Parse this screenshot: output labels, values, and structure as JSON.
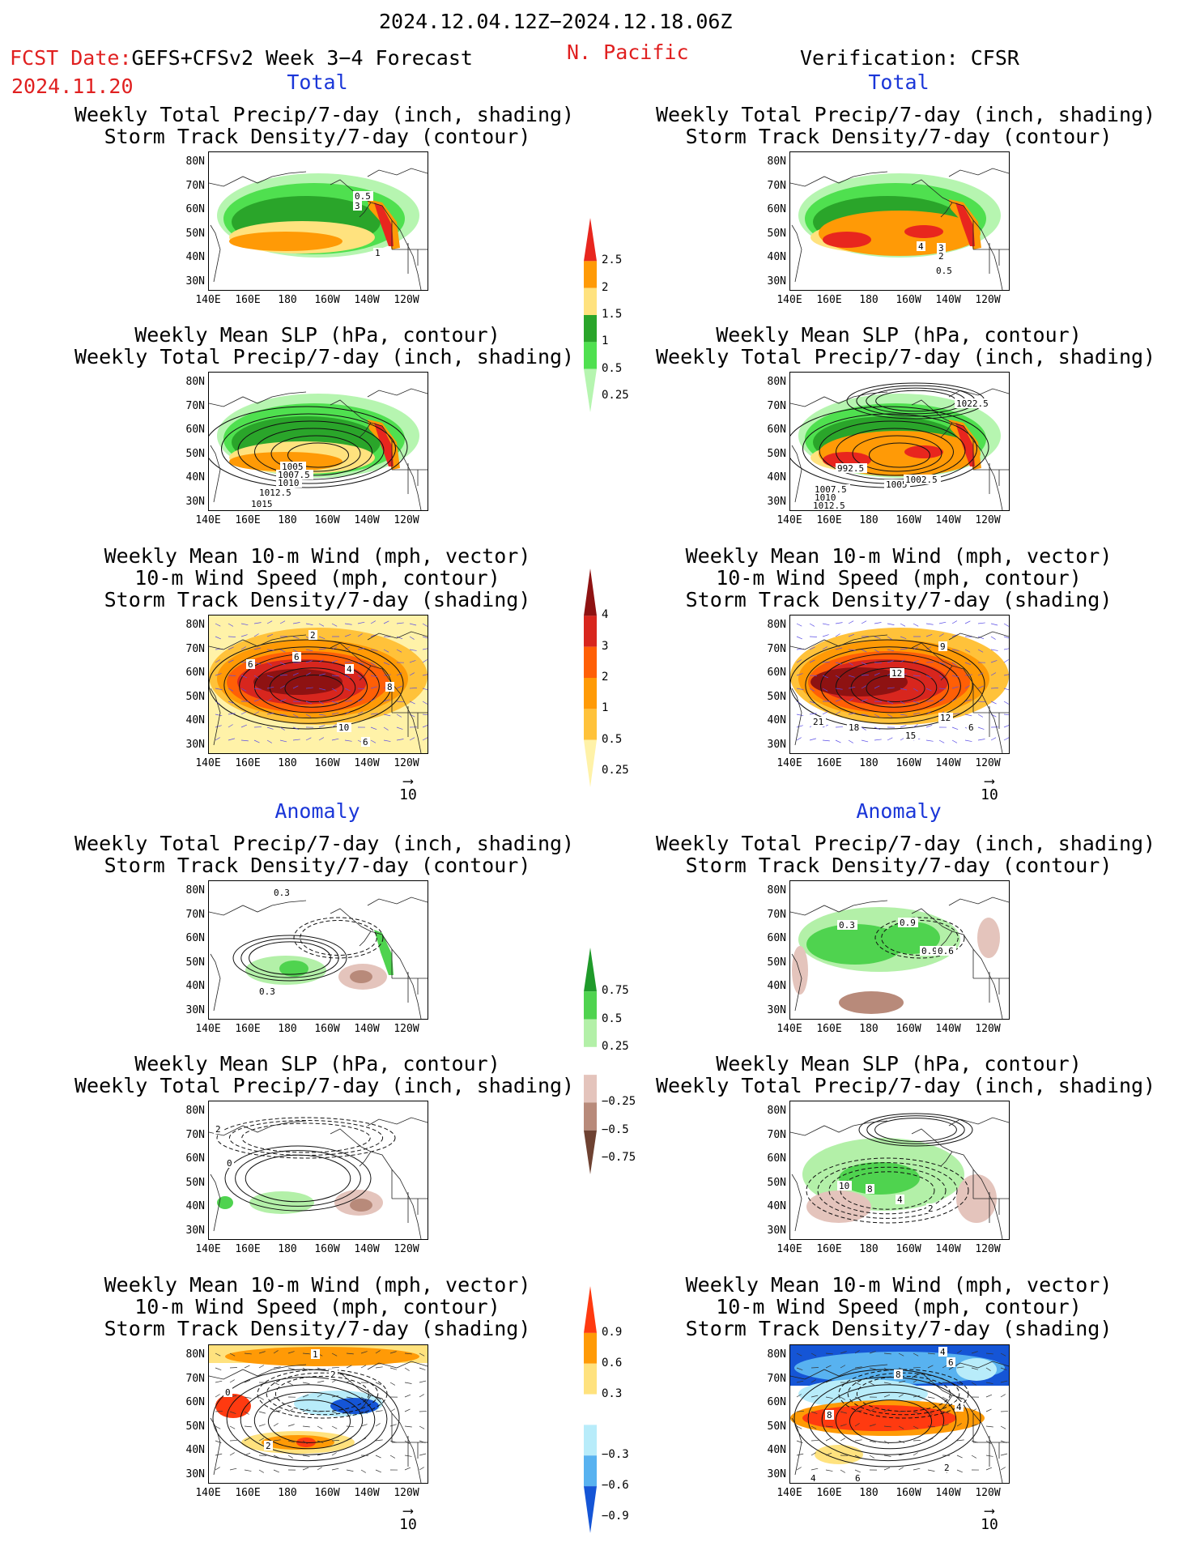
{
  "header": {
    "period": "2024.12.04.12Z−2024.12.18.06Z",
    "fcst_label": "FCST Date:",
    "forecast_name": "GEFS+CFSv2 Week 3−4 Forecast",
    "fcst_date": "2024.11.20",
    "region": "N. Pacific",
    "verification": "Verification: CFSR"
  },
  "sections": {
    "total": "Total",
    "anomaly": "Anomaly"
  },
  "panel_titles": {
    "precip_track": [
      "Weekly Total Precip/7-day (inch, shading)",
      "Storm Track Density/7-day (contour)"
    ],
    "slp_precip": [
      "Weekly Mean SLP (hPa, contour)",
      "Weekly Total Precip/7-day (inch, shading)"
    ],
    "wind_track": [
      "Weekly Mean 10-m Wind (mph, vector)",
      "10-m Wind Speed (mph, contour)",
      "Storm Track Density/7-day (shading)"
    ]
  },
  "axes": {
    "lat_ticks": [
      "80N",
      "70N",
      "60N",
      "50N",
      "40N",
      "30N"
    ],
    "lon_ticks": [
      "140E",
      "160E",
      "180",
      "160W",
      "140W",
      "120W"
    ]
  },
  "vector_ref": "10",
  "colorbars": {
    "precip_total": {
      "labels": [
        "2.5",
        "2",
        "1.5",
        "1",
        "0.5",
        "0.25"
      ],
      "colors": [
        "#e8261e",
        "#ff9a06",
        "#ffe27e",
        "#2aa52a",
        "#4fe04f",
        "#b6f5b0"
      ]
    },
    "track_total": {
      "labels": [
        "4",
        "3",
        "2",
        "1",
        "0.5",
        "0.25"
      ],
      "colors": [
        "#8e1212",
        "#d8261e",
        "#ff5f06",
        "#ff9a06",
        "#ffc23a",
        "#fff2a8"
      ]
    },
    "precip_anom": {
      "labels": [
        "0.75",
        "0.5",
        "0.25",
        "−0.25",
        "−0.5",
        "−0.75"
      ],
      "colors": [
        "#1f9a2a",
        "#4fd34f",
        "#b3f0a8",
        "#ffffff",
        "#e4c4bc",
        "#b88a7a",
        "#6e4232"
      ]
    },
    "track_anom": {
      "labels": [
        "0.9",
        "0.6",
        "0.3",
        "−0.3",
        "−0.6",
        "−0.9"
      ],
      "colors": [
        "#ff3a10",
        "#ff9a06",
        "#ffe27e",
        "#ffffff",
        "#b8ecfa",
        "#58b2f0",
        "#1555d6"
      ]
    }
  },
  "contour_labels": {
    "fcst_total_precip": [
      "0.5",
      "3",
      "1"
    ],
    "cfsr_total_precip": [
      "4",
      "3",
      "2",
      "0.5"
    ],
    "fcst_total_slp": [
      "1005",
      "1007.5",
      "1010",
      "1012.5",
      "1015"
    ],
    "cfsr_total_slp": [
      "1022.5",
      "992.5",
      "1005",
      "1002.5",
      "1007.5",
      "1010",
      "1012.5"
    ],
    "fcst_total_wind": [
      "2",
      "6",
      "6",
      "4",
      "8",
      "10",
      "6"
    ],
    "cfsr_total_wind": [
      "9",
      "12",
      "21",
      "18",
      "15",
      "12",
      "6"
    ],
    "fcst_anom_precip": [
      "0.3",
      "0.3"
    ],
    "cfsr_anom_precip": [
      "0.3",
      "0.9",
      "0.9",
      "0.6"
    ],
    "fcst_anom_slp": [
      "2",
      "0"
    ],
    "cfsr_anom_slp": [
      "10",
      "8",
      "4",
      "2"
    ],
    "fcst_anom_wind": [
      "1",
      "2",
      "0",
      "2"
    ],
    "cfsr_anom_wind": [
      "4",
      "6",
      "8",
      "4",
      "8",
      "2",
      "4",
      "6"
    ]
  }
}
